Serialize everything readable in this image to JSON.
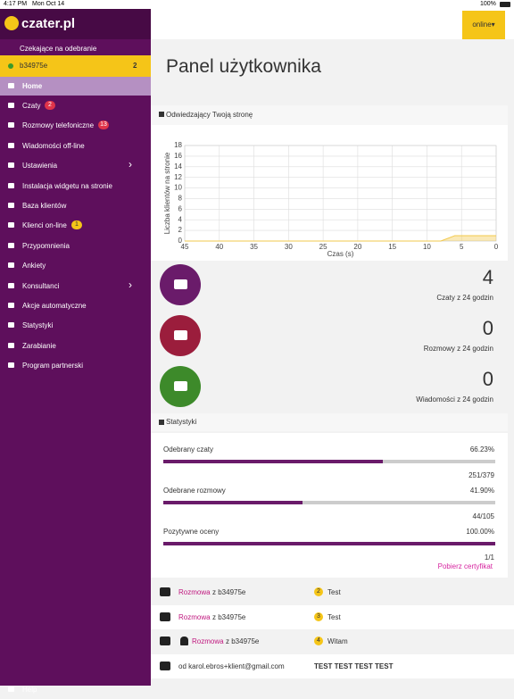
{
  "status_bar": {
    "time": "4:17 PM",
    "date": "Mon Oct 14",
    "battery": "100%"
  },
  "sidebar": {
    "logo": "czater.pl",
    "waiting_header": "Czekające na odebranie",
    "user": {
      "name": "b34975e",
      "count": 2
    },
    "items": [
      {
        "label": "Home"
      },
      {
        "label": "Czaty",
        "badge": 2
      },
      {
        "label": "Rozmowy telefoniczne",
        "badge": 13
      },
      {
        "label": "Wiadomości off-line"
      },
      {
        "label": "Ustawienia"
      },
      {
        "label": "Instalacja widgetu na stronie"
      },
      {
        "label": "Baza klientów"
      },
      {
        "label": "Klienci on-line",
        "badge": 1
      },
      {
        "label": "Przypomnienia"
      },
      {
        "label": "Ankiety"
      },
      {
        "label": "Konsultanci"
      },
      {
        "label": "Akcje automatyczne"
      },
      {
        "label": "Statystyki"
      },
      {
        "label": "Zarabianie"
      },
      {
        "label": "Program partnerski"
      },
      {
        "label": "Help"
      }
    ]
  },
  "header": {
    "status_button": "online",
    "title": "Panel użytkownika"
  },
  "visitors_header": "Odwiedzający Twoją stronę",
  "chart_data": {
    "type": "line",
    "area": true,
    "x_label": "Czas (s)",
    "y_label": "Liczba klientów na stronie",
    "x": [
      45,
      8,
      6,
      0
    ],
    "series": [
      {
        "color": "#f2c94c",
        "values": [
          0,
          0,
          1,
          1
        ]
      }
    ],
    "xlim": [
      45,
      0
    ],
    "xticks": [
      45,
      40,
      35,
      30,
      25,
      20,
      15,
      10,
      5,
      0
    ],
    "ylim": [
      0,
      18
    ],
    "yticks": [
      0,
      2,
      4,
      6,
      8,
      10,
      12,
      14,
      16,
      18
    ],
    "grid": true
  },
  "counters": [
    {
      "value": 4,
      "caption": "Czaty z 24 godzin"
    },
    {
      "value": 0,
      "caption": "Rozmowy z 24 godzin"
    },
    {
      "value": 0,
      "caption": "Wiadomości z 24 godzin"
    }
  ],
  "stats": {
    "header": "Statystyki",
    "items": [
      {
        "label": "Odebrany czaty",
        "percent": 66.23,
        "percent_label": "66.23%",
        "fraction": "251/379"
      },
      {
        "label": "Odebrane rozmowy",
        "percent": 41.9,
        "percent_label": "41.90%",
        "fraction": "44/105"
      },
      {
        "label": "Pozytywne oceny",
        "percent": 100,
        "percent_label": "100.00%",
        "fraction": "1/1"
      }
    ],
    "certificate_link": "Pobierz certyfikat"
  },
  "activity": [
    {
      "link": "Rozmowa",
      "from": "z b34975e",
      "badge": 2,
      "message": "Test"
    },
    {
      "link": "Rozmowa",
      "from": "z b34975e",
      "badge": 3,
      "message": "Test"
    },
    {
      "link": "Rozmowa",
      "from": "z b34975e",
      "badge": 4,
      "message": "Witam"
    },
    {
      "from": "od karol.ebros+klient@gmail.com",
      "message": "TEST TEST TEST TEST"
    }
  ]
}
